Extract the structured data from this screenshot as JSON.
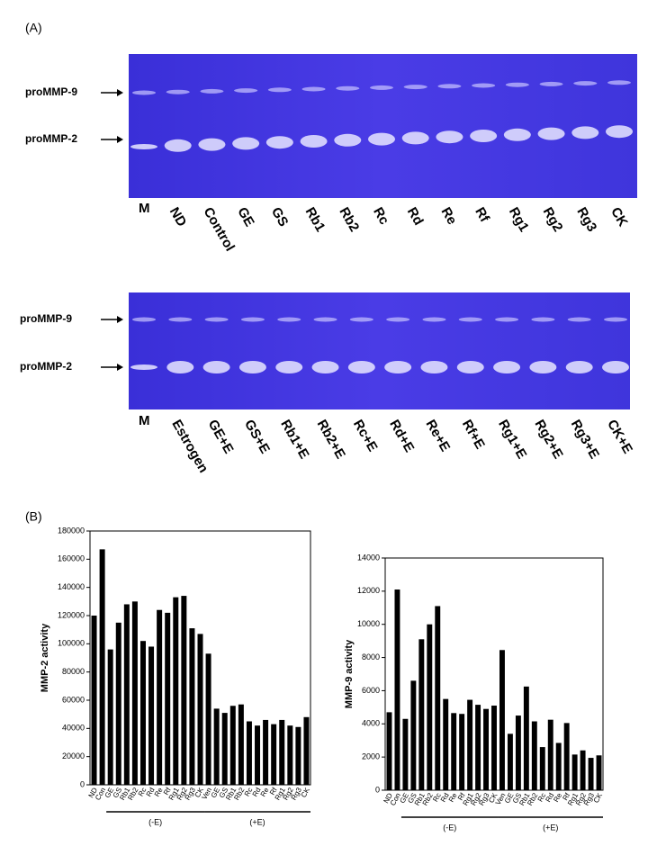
{
  "figure": {
    "panel_a": "(A)",
    "panel_b": "(B)",
    "gels": [
      {
        "markers": [
          "proMMP-9",
          "proMMP-2"
        ],
        "lanes": [
          "M",
          "ND",
          "Control",
          "GE",
          "GS",
          "Rb1",
          "Rb2",
          "Rc",
          "Rd",
          "Re",
          "Rf",
          "Rg1",
          "Rg2",
          "Rg3",
          "CK"
        ]
      },
      {
        "markers": [
          "proMMP-9",
          "proMMP-2"
        ],
        "lanes": [
          "M",
          "Estrogen",
          "GE+E",
          "GS+E",
          "Rb1+E",
          "Rb2+E",
          "Rc+E",
          "Rd+E",
          "Re+E",
          "Rf+E",
          "Rg1+E",
          "Rg2+E",
          "Rg3+E",
          "CK+E"
        ]
      }
    ]
  },
  "chart_data": [
    {
      "type": "bar",
      "y_label": "MMP-2 activity",
      "color": "#000000",
      "categories": [
        "ND",
        "Con",
        "GE",
        "GS",
        "Rb1",
        "Rb2",
        "Rc",
        "Rd",
        "Re",
        "Rf",
        "Rg1",
        "Rg2",
        "Rg3",
        "CK",
        "Ven",
        "GE",
        "GS",
        "Rb1",
        "Rb2",
        "Rc",
        "Rd",
        "Re",
        "Rf",
        "Rg1",
        "Rg2",
        "Rg3",
        "CK"
      ],
      "values": [
        120000,
        167000,
        96000,
        115000,
        128000,
        130000,
        102000,
        98000,
        124000,
        122000,
        133000,
        134000,
        111000,
        107000,
        93000,
        54000,
        51000,
        56000,
        57000,
        45000,
        42000,
        46000,
        43000,
        46000,
        42000,
        41000,
        48000
      ],
      "group_labels": [
        "(-E)",
        "(+E)"
      ],
      "ylim": [
        0,
        180000
      ],
      "yticks": [
        0,
        20000,
        40000,
        60000,
        80000,
        100000,
        120000,
        140000,
        160000,
        180000
      ]
    },
    {
      "type": "bar",
      "y_label": "MMP-9 activity",
      "color": "#000000",
      "categories": [
        "ND",
        "Con",
        "GE",
        "GS",
        "Rb1",
        "Rb2",
        "Rc",
        "Rd",
        "Re",
        "Rf",
        "Rg1",
        "Rg2",
        "Rg3",
        "CK",
        "Ven",
        "GE",
        "GS",
        "Rb1",
        "Rb2",
        "Rc",
        "Rd",
        "Re",
        "Rf",
        "Rg1",
        "Rg2",
        "Rg3",
        "CK"
      ],
      "values": [
        4700,
        12100,
        4300,
        6600,
        9100,
        10000,
        11100,
        5500,
        4650,
        4600,
        5450,
        5150,
        4900,
        5100,
        8450,
        3400,
        4500,
        6250,
        4150,
        2600,
        4250,
        2850,
        4050,
        2150,
        2400,
        1950,
        2100
      ],
      "group_labels": [
        "(-E)",
        "(+E)"
      ],
      "ylim": [
        0,
        14000
      ],
      "yticks": [
        0,
        2000,
        4000,
        6000,
        8000,
        10000,
        12000,
        14000
      ]
    }
  ]
}
